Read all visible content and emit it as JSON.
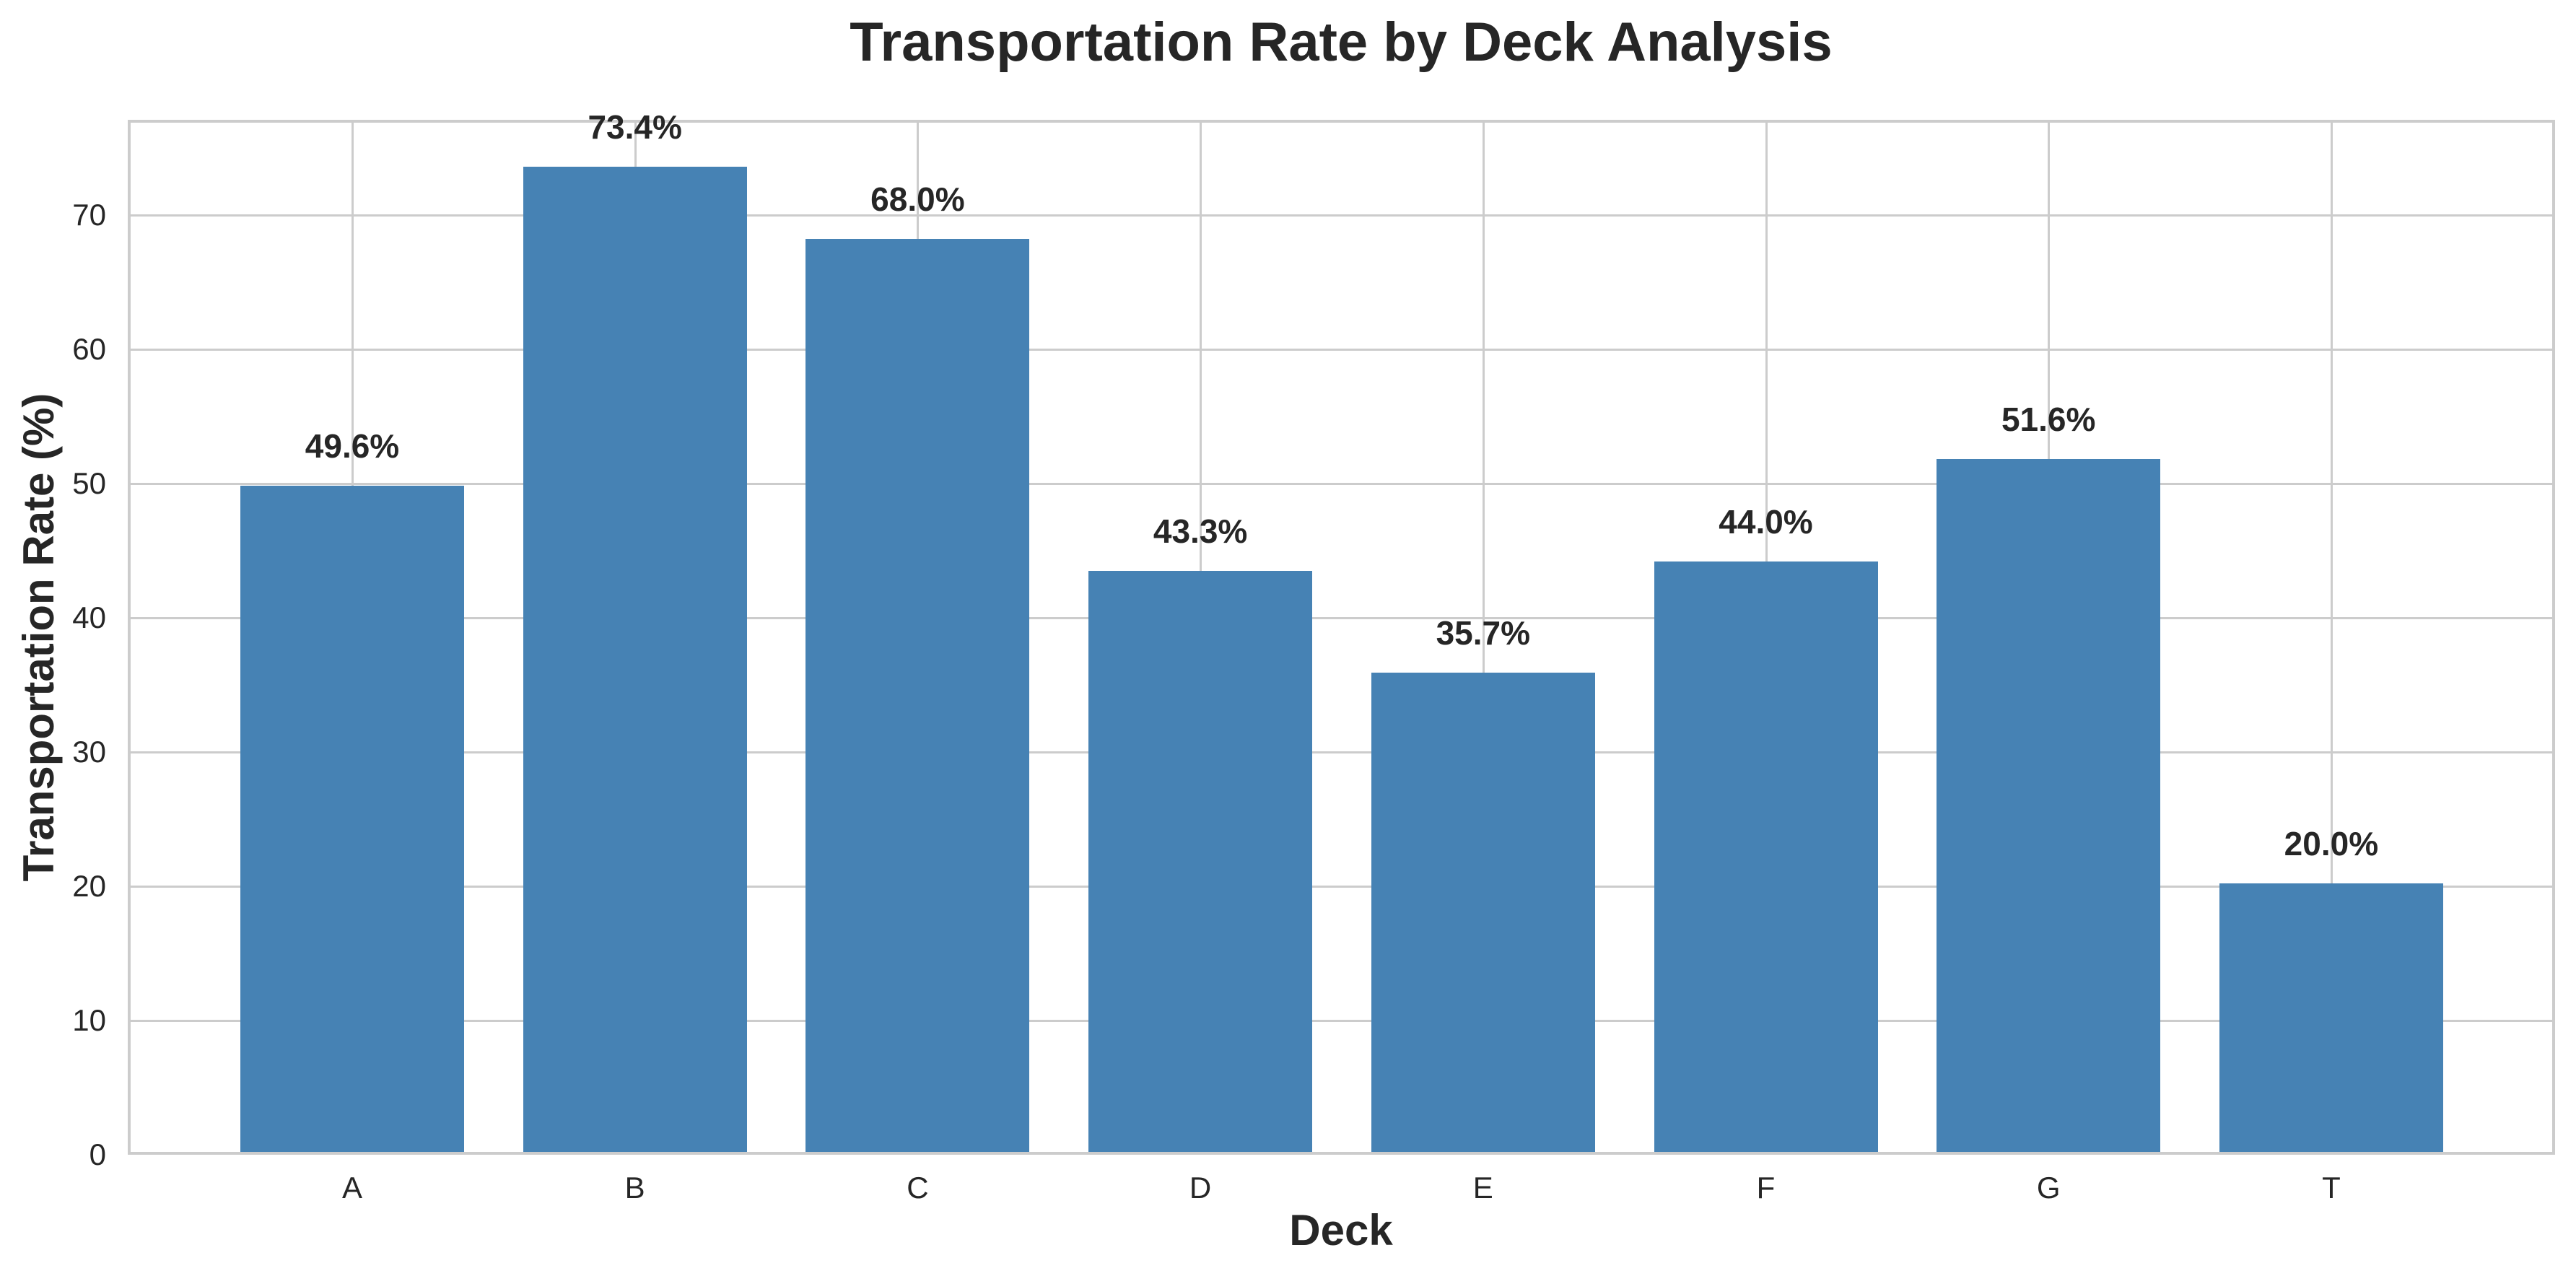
{
  "chart_data": {
    "type": "bar",
    "title": "Transportation Rate by Deck Analysis",
    "xlabel": "Deck",
    "ylabel": "Transportation Rate (%)",
    "categories": [
      "A",
      "B",
      "C",
      "D",
      "E",
      "F",
      "G",
      "T"
    ],
    "values": [
      49.6,
      73.4,
      68.0,
      43.3,
      35.7,
      44.0,
      51.6,
      20.0
    ],
    "data_labels": [
      "49.6%",
      "73.4%",
      "68.0%",
      "43.3%",
      "35.7%",
      "44.0%",
      "51.6%",
      "20.0%"
    ],
    "yticks": [
      0,
      10,
      20,
      30,
      40,
      50,
      60,
      70
    ],
    "ylim": [
      0,
      77.1
    ],
    "grid": true,
    "legend": null,
    "colors": {
      "bar": "#4682B4",
      "grid": "#cccccc",
      "text": "#262626"
    }
  }
}
